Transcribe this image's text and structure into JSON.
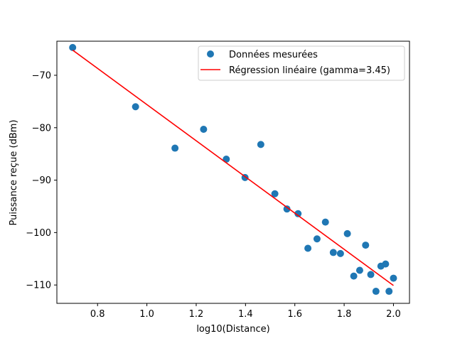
{
  "chart_data": {
    "type": "scatter",
    "title": "",
    "xlabel": "log10(Distance)",
    "ylabel": "Puissance reçue (dBm)",
    "xlim": [
      0.635,
      2.065
    ],
    "ylim": [
      -113.5,
      -63.5
    ],
    "x_ticks": [
      0.8,
      1.0,
      1.2,
      1.4,
      1.6,
      1.8,
      2.0
    ],
    "x_tick_labels": [
      "0.8",
      "1.0",
      "1.2",
      "1.4",
      "1.6",
      "1.8",
      "2.0"
    ],
    "y_ticks": [
      -110,
      -100,
      -90,
      -80,
      -70
    ],
    "y_tick_labels": [
      "−110",
      "−100",
      "−90",
      "−80",
      "−70"
    ],
    "grid": false,
    "legend_position": "top-right",
    "series": [
      {
        "name": "Données mesurées",
        "kind": "scatter",
        "color": "#1f77b4",
        "points": [
          [
            0.699,
            -64.7
          ],
          [
            0.954,
            -76.0
          ],
          [
            1.114,
            -83.9
          ],
          [
            1.23,
            -80.3
          ],
          [
            1.322,
            -86.0
          ],
          [
            1.398,
            -89.5
          ],
          [
            1.462,
            -83.2
          ],
          [
            1.519,
            -92.6
          ],
          [
            1.568,
            -95.5
          ],
          [
            1.613,
            -96.4
          ],
          [
            1.653,
            -103.0
          ],
          [
            1.69,
            -101.2
          ],
          [
            1.724,
            -98.0
          ],
          [
            1.756,
            -103.8
          ],
          [
            1.785,
            -104.0
          ],
          [
            1.813,
            -100.2
          ],
          [
            1.839,
            -108.3
          ],
          [
            1.863,
            -107.2
          ],
          [
            1.887,
            -102.4
          ],
          [
            1.908,
            -108.0
          ],
          [
            1.929,
            -111.2
          ],
          [
            1.949,
            -106.4
          ],
          [
            1.968,
            -106.0
          ],
          [
            1.982,
            -111.2
          ],
          [
            2.0,
            -108.7
          ]
        ]
      },
      {
        "name": "Régression linéaire (gamma=3.45)",
        "kind": "line",
        "color": "#ff0000",
        "points": [
          [
            0.699,
            -65.2
          ],
          [
            2.0,
            -110.1
          ]
        ]
      }
    ]
  }
}
